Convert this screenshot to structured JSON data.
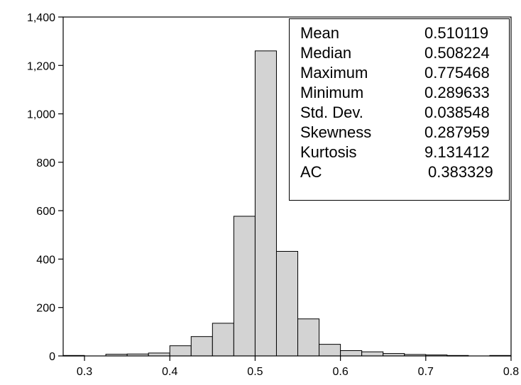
{
  "chart_data": {
    "type": "bar",
    "title": "",
    "xlabel": "",
    "ylabel": "",
    "xlim": [
      0.275,
      0.8
    ],
    "ylim": [
      0,
      1400
    ],
    "x_ticks": [
      0.3,
      0.4,
      0.5,
      0.6,
      0.7,
      0.8
    ],
    "x_tick_labels": [
      "0.3",
      "0.4",
      "0.5",
      "0.6",
      "0.7",
      "0.8"
    ],
    "y_ticks": [
      0,
      200,
      400,
      600,
      800,
      1000,
      1200,
      1400
    ],
    "y_tick_labels": [
      "0",
      "200",
      "400",
      "600",
      "800",
      "1,000",
      "1,200",
      "1,400"
    ],
    "bin_width": 0.025,
    "bins": [
      {
        "x0": 0.275,
        "x1": 0.3,
        "count": 2
      },
      {
        "x0": 0.3,
        "x1": 0.325,
        "count": 0
      },
      {
        "x0": 0.325,
        "x1": 0.35,
        "count": 7
      },
      {
        "x0": 0.35,
        "x1": 0.375,
        "count": 8
      },
      {
        "x0": 0.375,
        "x1": 0.4,
        "count": 12
      },
      {
        "x0": 0.4,
        "x1": 0.425,
        "count": 42
      },
      {
        "x0": 0.425,
        "x1": 0.45,
        "count": 80
      },
      {
        "x0": 0.45,
        "x1": 0.475,
        "count": 135
      },
      {
        "x0": 0.475,
        "x1": 0.5,
        "count": 577
      },
      {
        "x0": 0.5,
        "x1": 0.525,
        "count": 1260
      },
      {
        "x0": 0.525,
        "x1": 0.55,
        "count": 432
      },
      {
        "x0": 0.55,
        "x1": 0.575,
        "count": 153
      },
      {
        "x0": 0.575,
        "x1": 0.6,
        "count": 48
      },
      {
        "x0": 0.6,
        "x1": 0.625,
        "count": 22
      },
      {
        "x0": 0.625,
        "x1": 0.65,
        "count": 17
      },
      {
        "x0": 0.65,
        "x1": 0.675,
        "count": 10
      },
      {
        "x0": 0.675,
        "x1": 0.7,
        "count": 6
      },
      {
        "x0": 0.7,
        "x1": 0.725,
        "count": 4
      },
      {
        "x0": 0.725,
        "x1": 0.75,
        "count": 2
      },
      {
        "x0": 0.75,
        "x1": 0.775,
        "count": 0
      },
      {
        "x0": 0.775,
        "x1": 0.8,
        "count": 2
      }
    ],
    "bar_color": "#d3d3d3",
    "bar_edge_color": "#000000",
    "grid": false,
    "stats_box_position": "top-right"
  },
  "stats": [
    {
      "label": "Mean",
      "value": "0.510119"
    },
    {
      "label": "Median",
      "value": "0.508224"
    },
    {
      "label": "Maximum",
      "value": "0.775468"
    },
    {
      "label": "Minimum",
      "value": "0.289633"
    },
    {
      "label": "Std. Dev.",
      "value": "0.038548"
    },
    {
      "label": "Skewness",
      "value": "0.287959"
    },
    {
      "label": "Kurtosis",
      "value": "9.131412"
    },
    {
      "label": "AC",
      "value": "0.383329"
    }
  ]
}
